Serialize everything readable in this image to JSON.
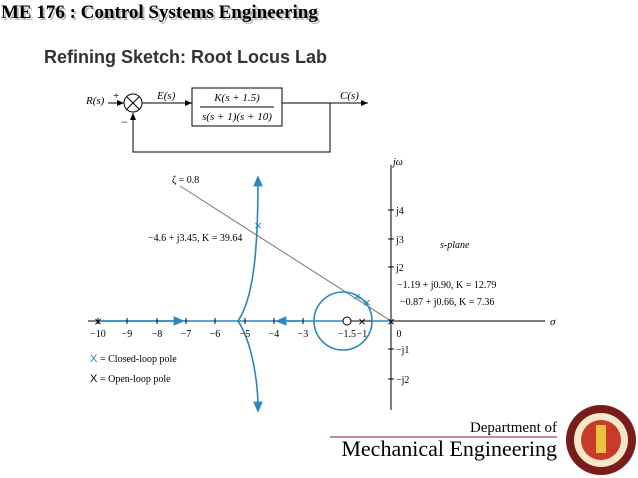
{
  "header": {
    "course": "ME 176 :  Control Systems Engineering",
    "title": "Refining Sketch:  Root Locus Lab"
  },
  "block_diagram": {
    "input": "R(s)",
    "plus": "+",
    "minus": "−",
    "error": "E(s)",
    "numerator": "K(s + 1.5)",
    "denominator": "s(s + 1)(s + 10)",
    "output": "C(s)"
  },
  "plot": {
    "imag_axis_label": "jω",
    "real_axis_label": "σ",
    "plane_label": "s-plane",
    "real_ticks": [
      "−10",
      "−9",
      "−8",
      "−7",
      "−6",
      "−5",
      "−4",
      "−3",
      "−1.5",
      "−1",
      "0"
    ],
    "imag_ticks": [
      "j4",
      "j3",
      "j2",
      "−j1",
      "−j2"
    ],
    "zeta_line": "ζ = 0.8",
    "annotations": [
      "−4.6 + j3.45, K = 39.64",
      "−1.19 + j0.90, K = 12.79",
      "−0.87 + j0.66, K = 7.36"
    ],
    "legend": [
      {
        "marker": "X",
        "text": "= Closed-loop pole"
      },
      {
        "marker": "X",
        "text": "= Open-loop pole"
      }
    ]
  },
  "footer": {
    "line1": "Department of",
    "line2": "Mechanical Engineering"
  }
}
